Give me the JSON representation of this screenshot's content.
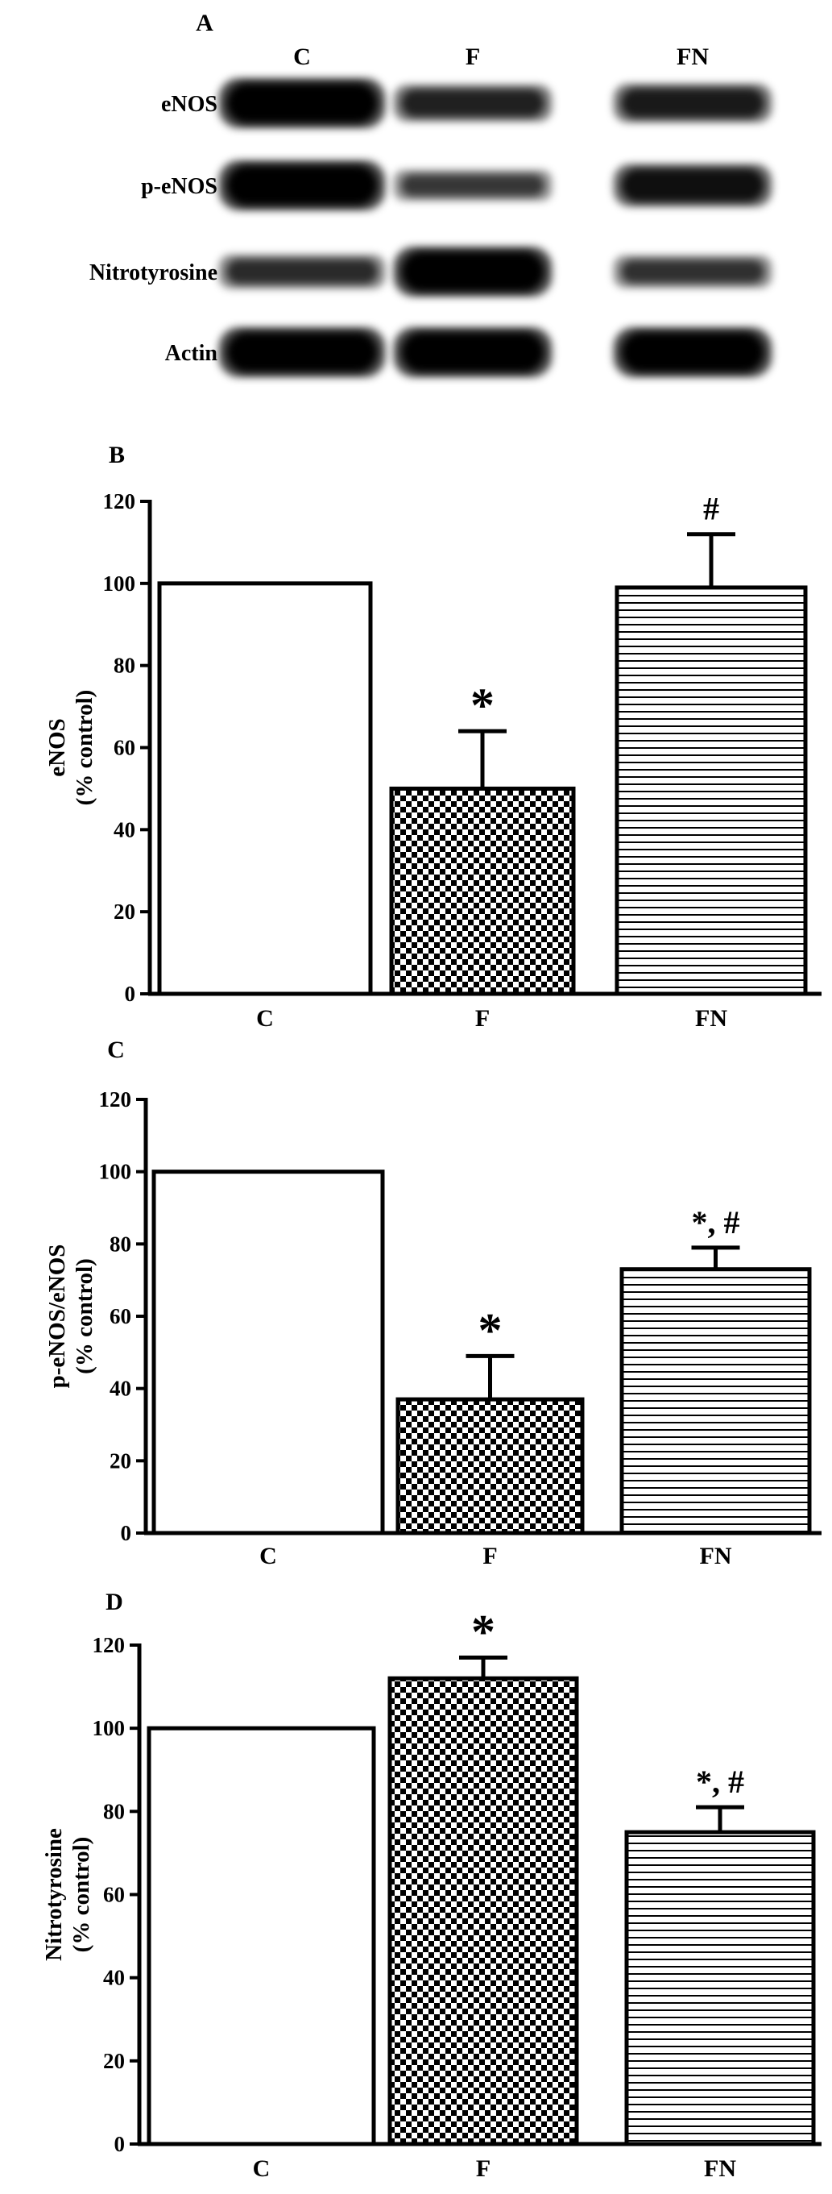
{
  "figure": {
    "panels": {
      "A": "A",
      "B": "B",
      "C": "C",
      "D": "D"
    },
    "blot": {
      "lanes": [
        "C",
        "F",
        "FN"
      ],
      "bands": [
        "eNOS",
        "p-eNOS",
        "Nitrotyrosine",
        "Actin"
      ],
      "intensity": [
        [
          1.0,
          0.55,
          0.62
        ],
        [
          1.0,
          0.35,
          0.75
        ],
        [
          0.45,
          1.0,
          0.4
        ],
        [
          1.0,
          1.0,
          1.0
        ]
      ]
    },
    "colors": {
      "C": "#ffffff",
      "F": "checkered",
      "FN": "horizontal-stripes",
      "axis": "#000000"
    }
  },
  "chart_data": [
    {
      "type": "bar",
      "panel": "B",
      "categories": [
        "C",
        "F",
        "FN"
      ],
      "values": [
        100,
        50,
        99
      ],
      "errors": [
        0,
        14,
        13
      ],
      "annotations": [
        "",
        "*",
        "#"
      ],
      "ylabel": [
        "eNOS",
        "(% control)"
      ],
      "ylim": [
        0,
        120
      ],
      "yticks": [
        "0",
        "20",
        "40",
        "60",
        "80",
        "100",
        "120"
      ]
    },
    {
      "type": "bar",
      "panel": "C",
      "categories": [
        "C",
        "F",
        "FN"
      ],
      "values": [
        100,
        37,
        73
      ],
      "errors": [
        0,
        12,
        6
      ],
      "annotations": [
        "",
        "*",
        "*, #"
      ],
      "ylabel": [
        "p-eNOS/eNOS",
        "(% control)"
      ],
      "ylim": [
        0,
        120
      ],
      "yticks": [
        "0",
        "20",
        "40",
        "60",
        "80",
        "100",
        "120"
      ]
    },
    {
      "type": "bar",
      "panel": "D",
      "categories": [
        "C",
        "F",
        "FN"
      ],
      "values": [
        100,
        112,
        75
      ],
      "errors": [
        0,
        5,
        6
      ],
      "annotations": [
        "",
        "*",
        "*, #"
      ],
      "ylabel": [
        "Nitrotyrosine",
        "(% control)"
      ],
      "ylim": [
        0,
        120
      ],
      "yticks": [
        "0",
        "20",
        "40",
        "60",
        "80",
        "100",
        "120"
      ]
    }
  ]
}
